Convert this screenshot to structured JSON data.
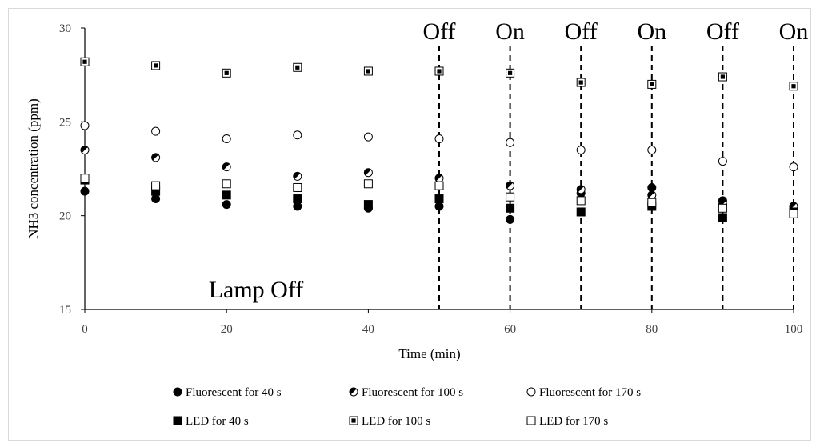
{
  "chart_data": {
    "type": "scatter",
    "xlabel": "Time (min)",
    "ylabel": "NH3 concentration (ppm)",
    "xlim": [
      0,
      100
    ],
    "ylim": [
      15,
      30
    ],
    "x_ticks": [
      0,
      20,
      40,
      60,
      80,
      100
    ],
    "y_ticks": [
      15,
      20,
      25,
      30
    ],
    "grid": false,
    "legend_position": "bottom",
    "x": [
      0,
      10,
      20,
      30,
      40,
      50,
      60,
      70,
      80,
      90,
      100
    ],
    "series": [
      {
        "name": "Fluorescent for 40 s",
        "marker": "filled-circle",
        "values": [
          21.3,
          20.9,
          20.6,
          20.5,
          20.4,
          20.5,
          19.8,
          21.2,
          21.5,
          20.8,
          20.3
        ]
      },
      {
        "name": "Fluorescent for 100 s",
        "marker": "half-circle",
        "values": [
          23.5,
          23.1,
          22.6,
          22.1,
          22.3,
          22.0,
          21.6,
          21.4,
          21.1,
          20.6,
          20.5
        ]
      },
      {
        "name": "Fluorescent for 170 s",
        "marker": "open-circle",
        "values": [
          24.8,
          24.5,
          24.1,
          24.3,
          24.2,
          24.1,
          23.9,
          23.5,
          23.5,
          22.9,
          22.6
        ]
      },
      {
        "name": "LED for 40 s",
        "marker": "filled-square",
        "values": [
          21.9,
          21.3,
          21.1,
          20.9,
          20.6,
          20.9,
          20.4,
          20.2,
          20.5,
          19.9,
          20.2
        ]
      },
      {
        "name": "LED for 100 s",
        "marker": "half-square",
        "values": [
          28.2,
          28.0,
          27.6,
          27.9,
          27.7,
          27.7,
          27.6,
          27.1,
          27.0,
          27.4,
          26.9
        ]
      },
      {
        "name": "LED for 170 s",
        "marker": "open-square",
        "values": [
          22.0,
          21.6,
          21.7,
          21.5,
          21.7,
          21.6,
          21.0,
          20.8,
          20.7,
          20.4,
          20.1
        ]
      }
    ],
    "switch_lines": [
      {
        "x": 50,
        "label": "Off"
      },
      {
        "x": 60,
        "label": "On"
      },
      {
        "x": 70,
        "label": "Off"
      },
      {
        "x": 80,
        "label": "On"
      },
      {
        "x": 90,
        "label": "Off"
      },
      {
        "x": 100,
        "label": "On"
      }
    ],
    "annotation": "Lamp Off",
    "colors": {
      "marker": "#000000",
      "axis": "#000000",
      "text": "#404040"
    }
  }
}
